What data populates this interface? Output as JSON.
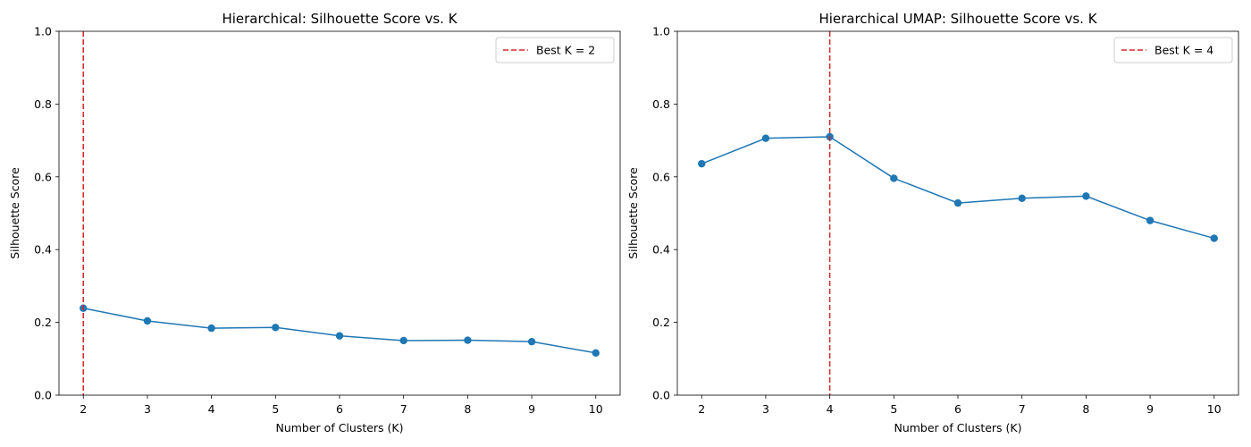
{
  "colors": {
    "series": "#1f77b4",
    "best_line": "#d62728",
    "axis": "#000000",
    "legend_border": "#cccccc"
  },
  "chart_data": [
    {
      "type": "line",
      "title": "Hierarchical: Silhouette Score vs. K",
      "xlabel": "Number of Clusters (K)",
      "ylabel": "Silhouette Score",
      "x": [
        2,
        3,
        4,
        5,
        6,
        7,
        8,
        9,
        10
      ],
      "y": [
        0.239,
        0.204,
        0.184,
        0.186,
        0.163,
        0.15,
        0.151,
        0.147,
        0.116
      ],
      "xticks": [
        "2",
        "3",
        "4",
        "5",
        "6",
        "7",
        "8",
        "9",
        "10"
      ],
      "yticks": [
        "0.0",
        "0.2",
        "0.4",
        "0.6",
        "0.8",
        "1.0"
      ],
      "xlim": [
        1.62,
        10.38
      ],
      "ylim": [
        0,
        1.0
      ],
      "grid": false,
      "best_k": 2,
      "legend": {
        "label": "Best K = 2",
        "position": "top-right"
      }
    },
    {
      "type": "line",
      "title": "Hierarchical UMAP: Silhouette Score vs. K",
      "xlabel": "Number of Clusters (K)",
      "ylabel": "Silhouette Score",
      "x": [
        2,
        3,
        4,
        5,
        6,
        7,
        8,
        9,
        10
      ],
      "y": [
        0.636,
        0.706,
        0.71,
        0.596,
        0.528,
        0.541,
        0.547,
        0.48,
        0.431
      ],
      "xticks": [
        "2",
        "3",
        "4",
        "5",
        "6",
        "7",
        "8",
        "9",
        "10"
      ],
      "yticks": [
        "0.0",
        "0.2",
        "0.4",
        "0.6",
        "0.8",
        "1.0"
      ],
      "xlim": [
        1.62,
        10.38
      ],
      "ylim": [
        0,
        1.0
      ],
      "grid": false,
      "best_k": 4,
      "legend": {
        "label": "Best K = 4",
        "position": "top-right"
      }
    }
  ]
}
